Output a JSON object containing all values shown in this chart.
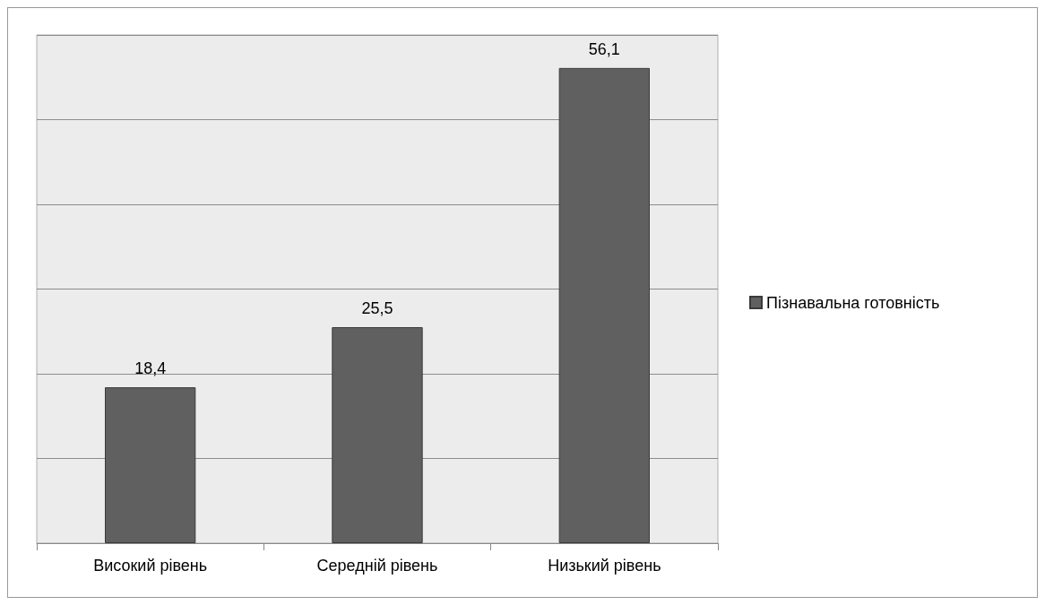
{
  "chart_data": {
    "type": "bar",
    "categories": [
      "Високий рівень",
      "Середній рівень",
      "Низький рівень"
    ],
    "series": [
      {
        "name": "Пізнавальна готовність",
        "color": "#606060",
        "values": [
          18.4,
          25.5,
          56.1
        ],
        "value_labels": [
          "18,4",
          "25,5",
          "56,1"
        ]
      }
    ],
    "ylim": [
      0,
      60
    ],
    "yticks": [
      {
        "value": 0,
        "label": null
      },
      {
        "value": 10,
        "label": null
      },
      {
        "value": 20,
        "label": null
      },
      {
        "value": 30,
        "label": null
      },
      {
        "value": 40,
        "label": null
      },
      {
        "value": 50,
        "label": null
      },
      {
        "value": 60,
        "label": null
      }
    ],
    "tick_labels": "x",
    "grid": "y",
    "legend": "right"
  }
}
